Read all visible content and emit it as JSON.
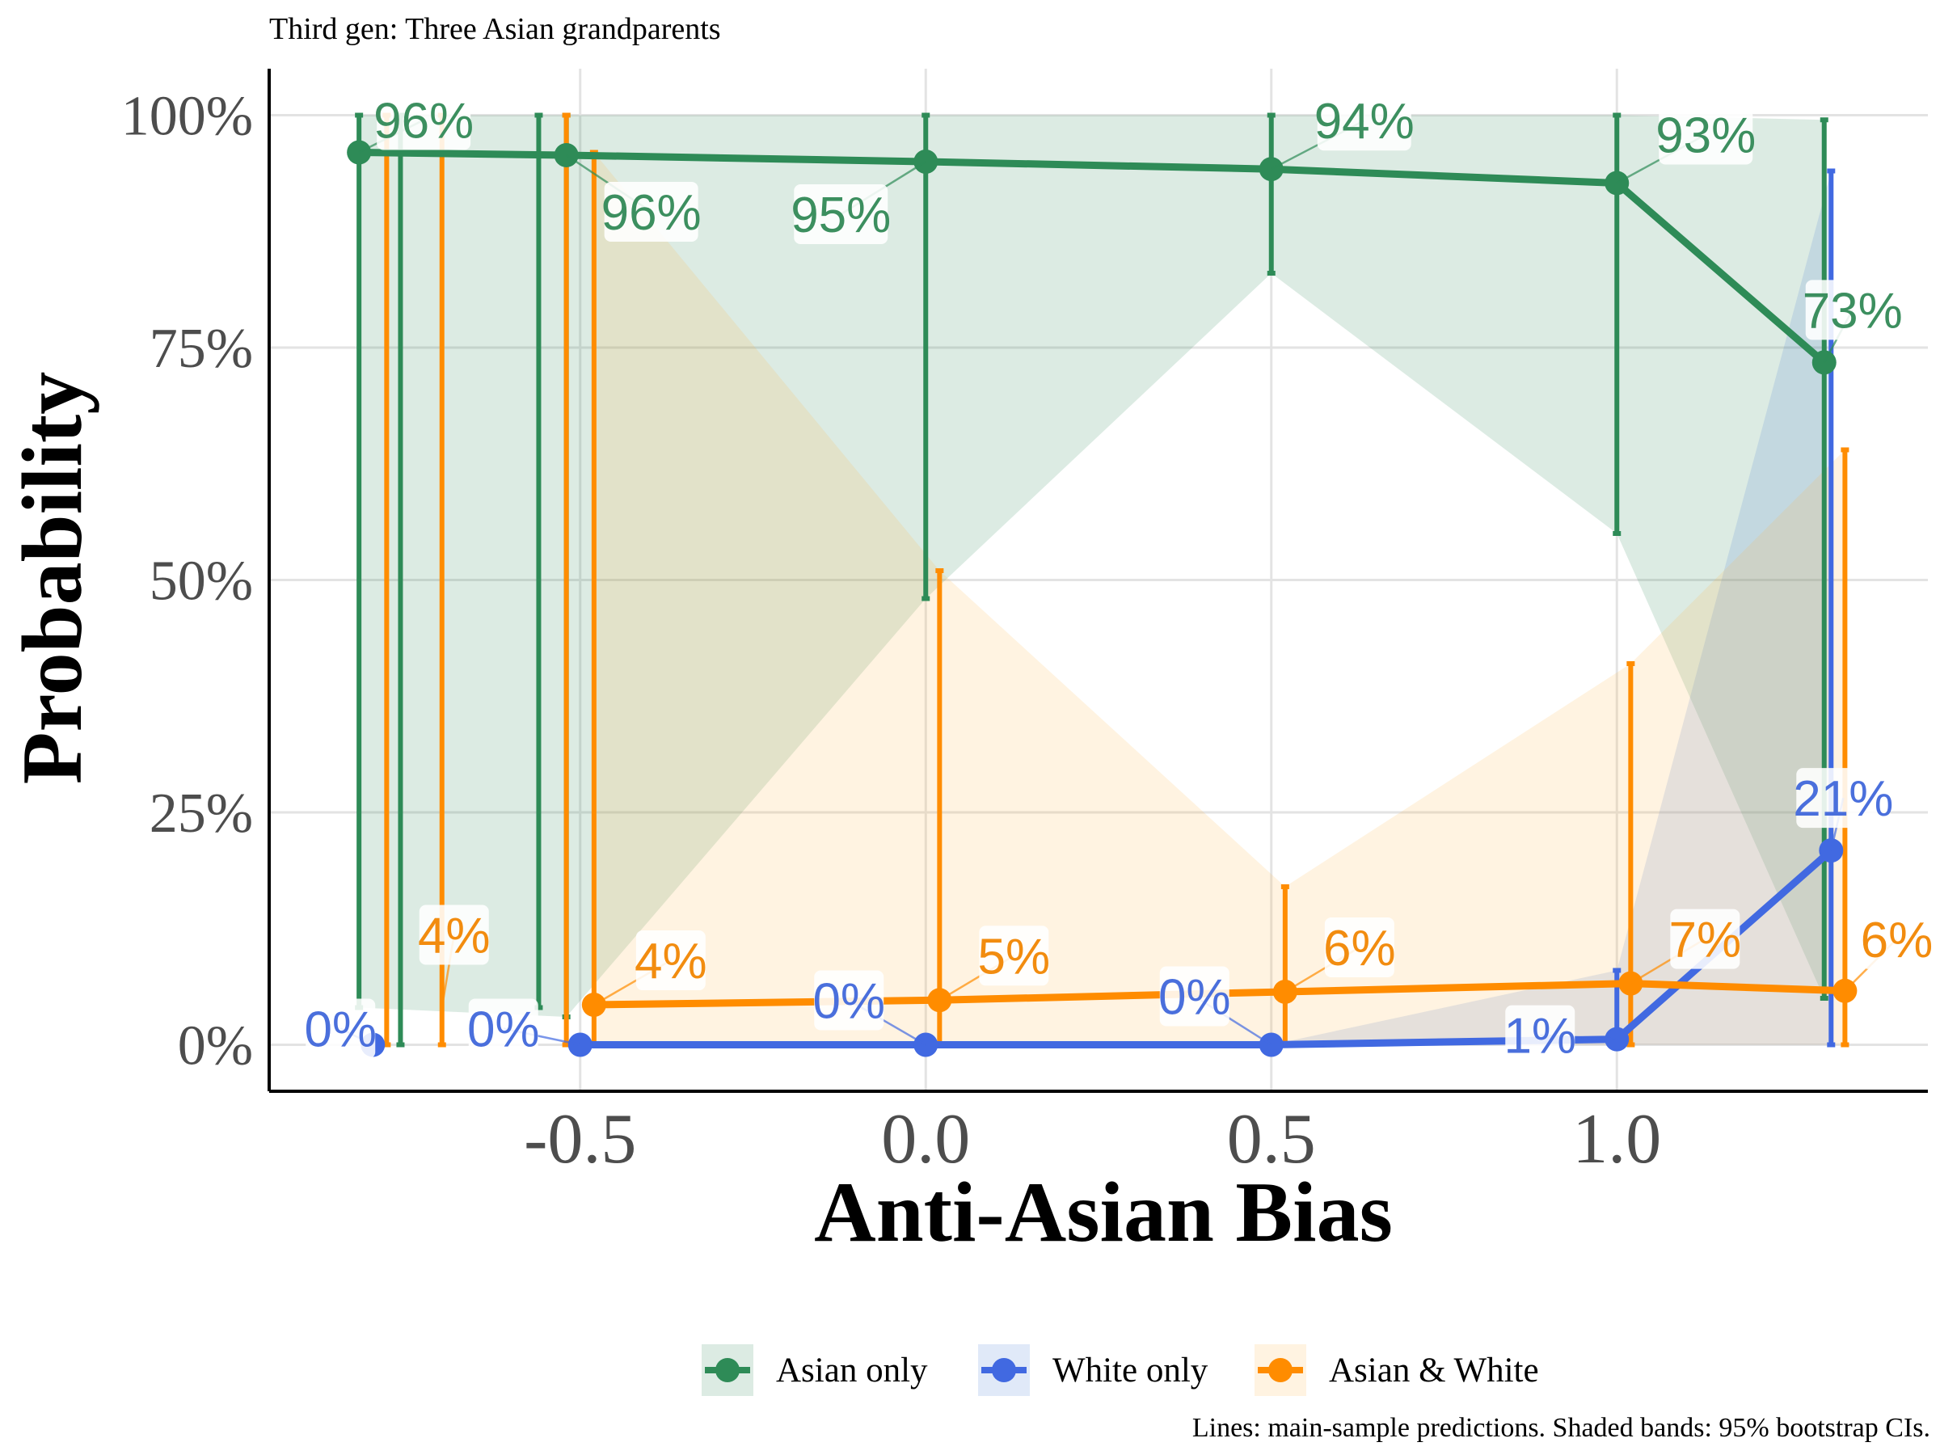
{
  "chart_data": {
    "type": "line",
    "title": "Third gen: Three Asian grandparents",
    "xlabel": "Anti-Asian Bias",
    "ylabel": "Probability",
    "caption": "Lines: main-sample predictions. Shaded bands: 95% bootstrap CIs.",
    "xlim": [
      -0.95,
      1.45
    ],
    "ylim": [
      -0.05,
      1.05
    ],
    "x_ticks": [
      -0.5,
      0.0,
      0.5,
      1.0
    ],
    "x_tick_labels": [
      "-0.5",
      "0.0",
      "0.5",
      "1.0"
    ],
    "y_ticks": [
      0,
      0.25,
      0.5,
      0.75,
      1.0
    ],
    "y_tick_labels": [
      "0%",
      "25%",
      "50%",
      "75%",
      "100%"
    ],
    "grid": true,
    "legend_position": "bottom",
    "series": [
      {
        "name": "Asian only",
        "color": "#2e8b57",
        "band_color": "#2e8b57",
        "x": [
          -0.82,
          -0.52,
          0.0,
          0.5,
          1.0,
          1.3
        ],
        "y": [
          0.96,
          0.957,
          0.95,
          0.942,
          0.927,
          0.734
        ],
        "lower": [
          0.04,
          0.03,
          0.48,
          0.83,
          0.55,
          0.05
        ],
        "upper": [
          1.0,
          1.0,
          1.0,
          1.0,
          1.0,
          0.995
        ],
        "labels": [
          "96%",
          "96%",
          "95%",
          "94%",
          "93%",
          "73%"
        ],
        "extra_bars": [
          {
            "x": -0.76,
            "lower": 0.0,
            "upper": 1.0
          },
          {
            "x": -0.56,
            "lower": 0.04,
            "upper": 1.0
          }
        ]
      },
      {
        "name": "White only",
        "color": "#4169e1",
        "band_color": "#4a7bd8",
        "x": [
          -0.5,
          0.0,
          0.5,
          1.0,
          1.31
        ],
        "y": [
          0.0,
          0.0,
          0.0,
          0.006,
          0.209
        ],
        "lower": [
          0.0,
          0.0,
          0.0,
          0.0,
          0.0
        ],
        "upper": [
          0.0,
          0.0,
          0.0,
          0.08,
          0.94
        ],
        "labels": [
          "0%",
          "0%",
          "0%",
          "1%",
          "21%"
        ],
        "extra_points": [
          {
            "x": -0.8,
            "y": 0.0,
            "label": "0%"
          }
        ]
      },
      {
        "name": "Asian & White",
        "color": "#ff8c00",
        "band_color": "#ffb84d",
        "x": [
          -0.48,
          0.02,
          0.52,
          1.02,
          1.33
        ],
        "y": [
          0.043,
          0.048,
          0.057,
          0.066,
          0.058
        ],
        "lower": [
          0.0,
          0.0,
          0.0,
          0.0,
          0.0
        ],
        "upper": [
          0.96,
          0.51,
          0.17,
          0.41,
          0.64
        ],
        "labels": [
          "4%",
          "5%",
          "6%",
          "7%",
          "6%"
        ],
        "extra_bars": [
          {
            "x": -0.78,
            "lower": 0.0,
            "upper": 1.0
          },
          {
            "x": -0.7,
            "lower": 0.0,
            "upper": 1.0
          },
          {
            "x": -0.52,
            "lower": 0.0,
            "upper": 1.0
          }
        ],
        "extra_labels": [
          {
            "x": -0.7,
            "y": 0.04,
            "label": "4%"
          }
        ]
      }
    ]
  }
}
